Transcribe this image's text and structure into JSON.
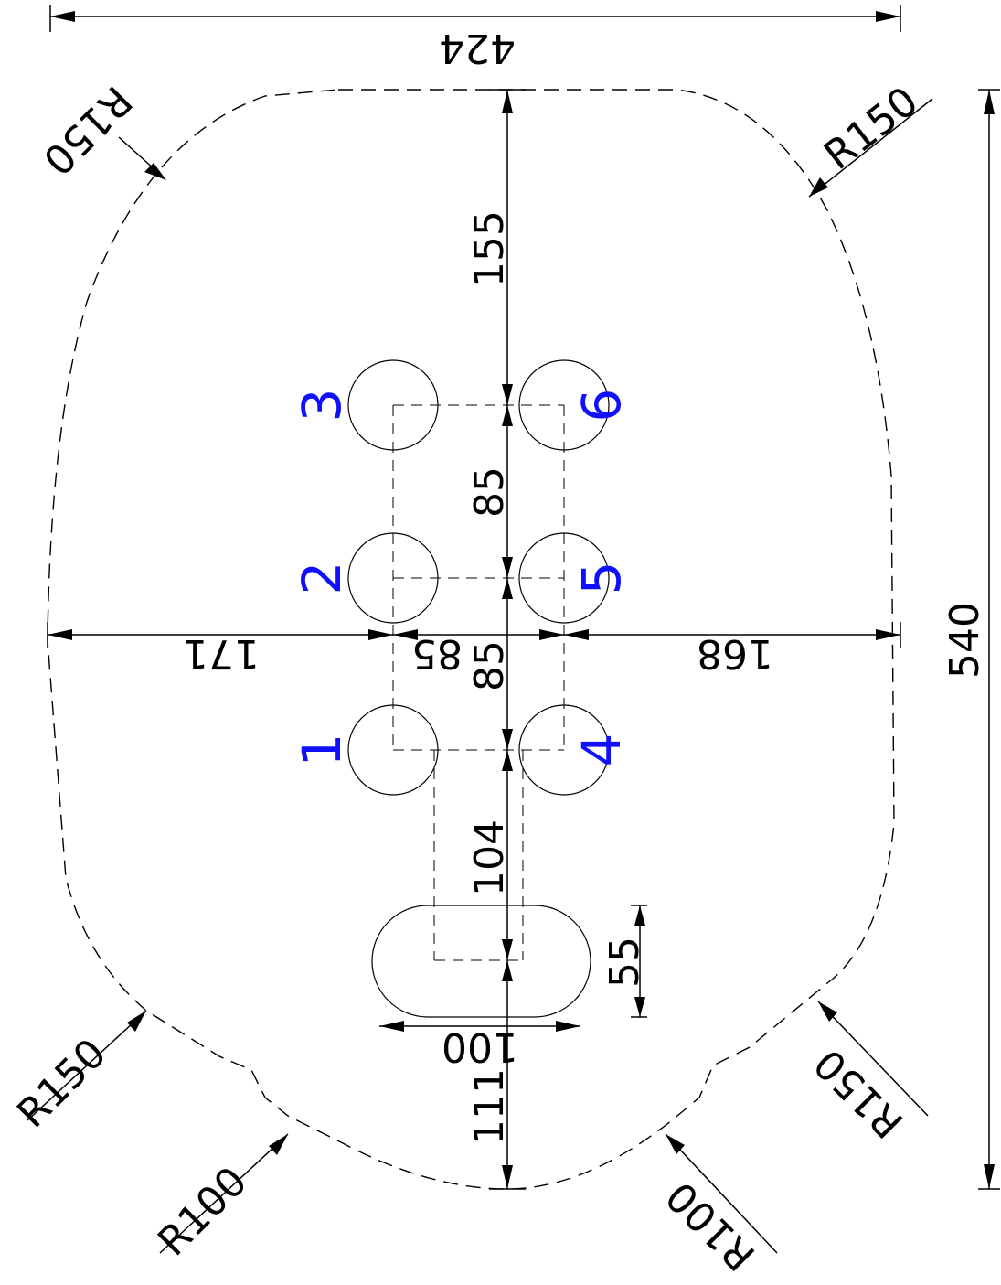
{
  "dimensions": {
    "width_total": "424",
    "height_total": "540",
    "top_gap": "155",
    "hole_pitch_upper": "85",
    "hole_pitch_lower": "85",
    "left_gap": "171",
    "hole_spacing_x": "85",
    "right_gap": "168",
    "slot_offset": "104",
    "slot_height": "55",
    "slot_width": "100",
    "bottom_gap": "111"
  },
  "radii": {
    "top_left": "R150",
    "top_right": "R150",
    "bottom_left_outer": "R150",
    "bottom_left_inner": "R100",
    "bottom_right_outer": "R150",
    "bottom_right_inner": "R100"
  },
  "holes": {
    "h1": "1",
    "h2": "2",
    "h3": "3",
    "h4": "4",
    "h5": "5",
    "h6": "6"
  },
  "colors": {
    "hole_number": "#1010ff",
    "lines": "#000000"
  }
}
